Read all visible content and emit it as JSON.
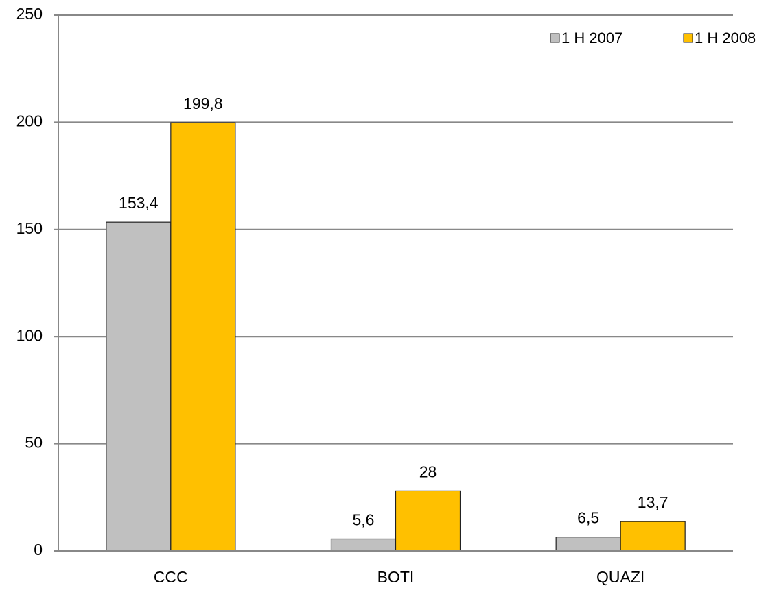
{
  "chart_data": {
    "type": "bar",
    "categories": [
      "CCC",
      "BOTI",
      "QUAZI"
    ],
    "series": [
      {
        "name": "1 H 2007",
        "color": "#c0c0c0",
        "values": [
          153.4,
          5.6,
          6.5
        ],
        "value_labels": [
          "153,4",
          "5,6",
          "6,5"
        ]
      },
      {
        "name": "1 H 2008",
        "color": "#ffc000",
        "values": [
          199.8,
          28,
          13.7
        ],
        "value_labels": [
          "199,8",
          "28",
          "13,7"
        ]
      }
    ],
    "ylim": [
      0,
      250
    ],
    "yticks": [
      0,
      50,
      100,
      150,
      200,
      250
    ],
    "grid": true,
    "legend": "top-right"
  }
}
